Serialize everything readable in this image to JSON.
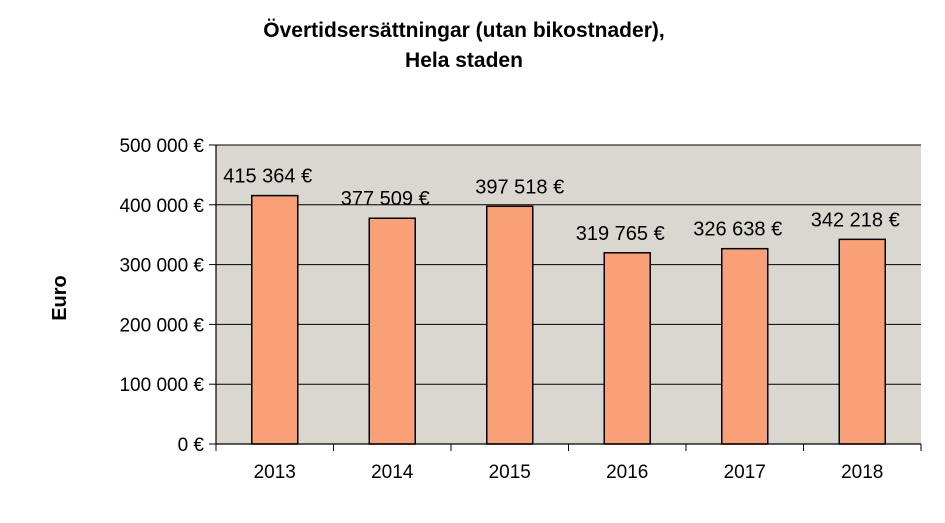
{
  "chart_data": {
    "type": "bar",
    "title_lines": [
      "Övertidsersättningar (utan bikostnader),",
      "Hela staden"
    ],
    "ylabel": "Euro",
    "xlabel": "",
    "categories": [
      "2013",
      "2014",
      "2015",
      "2016",
      "2017",
      "2018"
    ],
    "values": [
      415364,
      377509,
      397518,
      319765,
      326638,
      342218
    ],
    "data_labels": [
      "415 364 €",
      "377 509 €",
      "397 518 €",
      "319 765 €",
      "326 638 €",
      "342 218 €"
    ],
    "ylim": [
      0,
      500000
    ],
    "yticks": [
      0,
      100000,
      200000,
      300000,
      400000,
      500000
    ],
    "ytick_labels": [
      "0 €",
      "100 000 €",
      "200 000 €",
      "300 000 €",
      "400 000 €",
      "500 000 €"
    ],
    "grid": true,
    "legend": "none",
    "colors": {
      "bar_fill": "#f9a077",
      "bar_stroke": "#000000",
      "plot_background": "#d9d7d0",
      "grid": "#000000"
    }
  }
}
